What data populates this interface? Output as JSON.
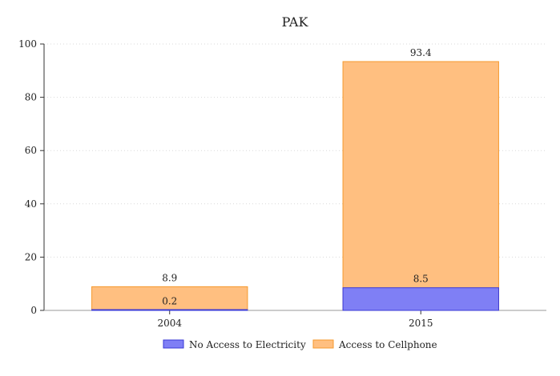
{
  "chart_data": {
    "type": "bar",
    "stacked": true,
    "title": "PAK",
    "xlabel": "",
    "ylabel": "",
    "categories": [
      "2004",
      "2015"
    ],
    "ylim": [
      0,
      100
    ],
    "yticks": [
      0,
      20,
      40,
      60,
      80,
      100
    ],
    "grid": true,
    "legend_position": "bottom",
    "series": [
      {
        "name": "No Access to Electricity",
        "values": [
          0.2,
          8.5
        ],
        "color": "#7f7ff5",
        "stroke": "#3a3ad6"
      },
      {
        "name": "Access to Cellphone",
        "values": [
          8.9,
          93.4
        ],
        "color": "#ffbf80",
        "stroke": "#f59a2e"
      }
    ]
  }
}
